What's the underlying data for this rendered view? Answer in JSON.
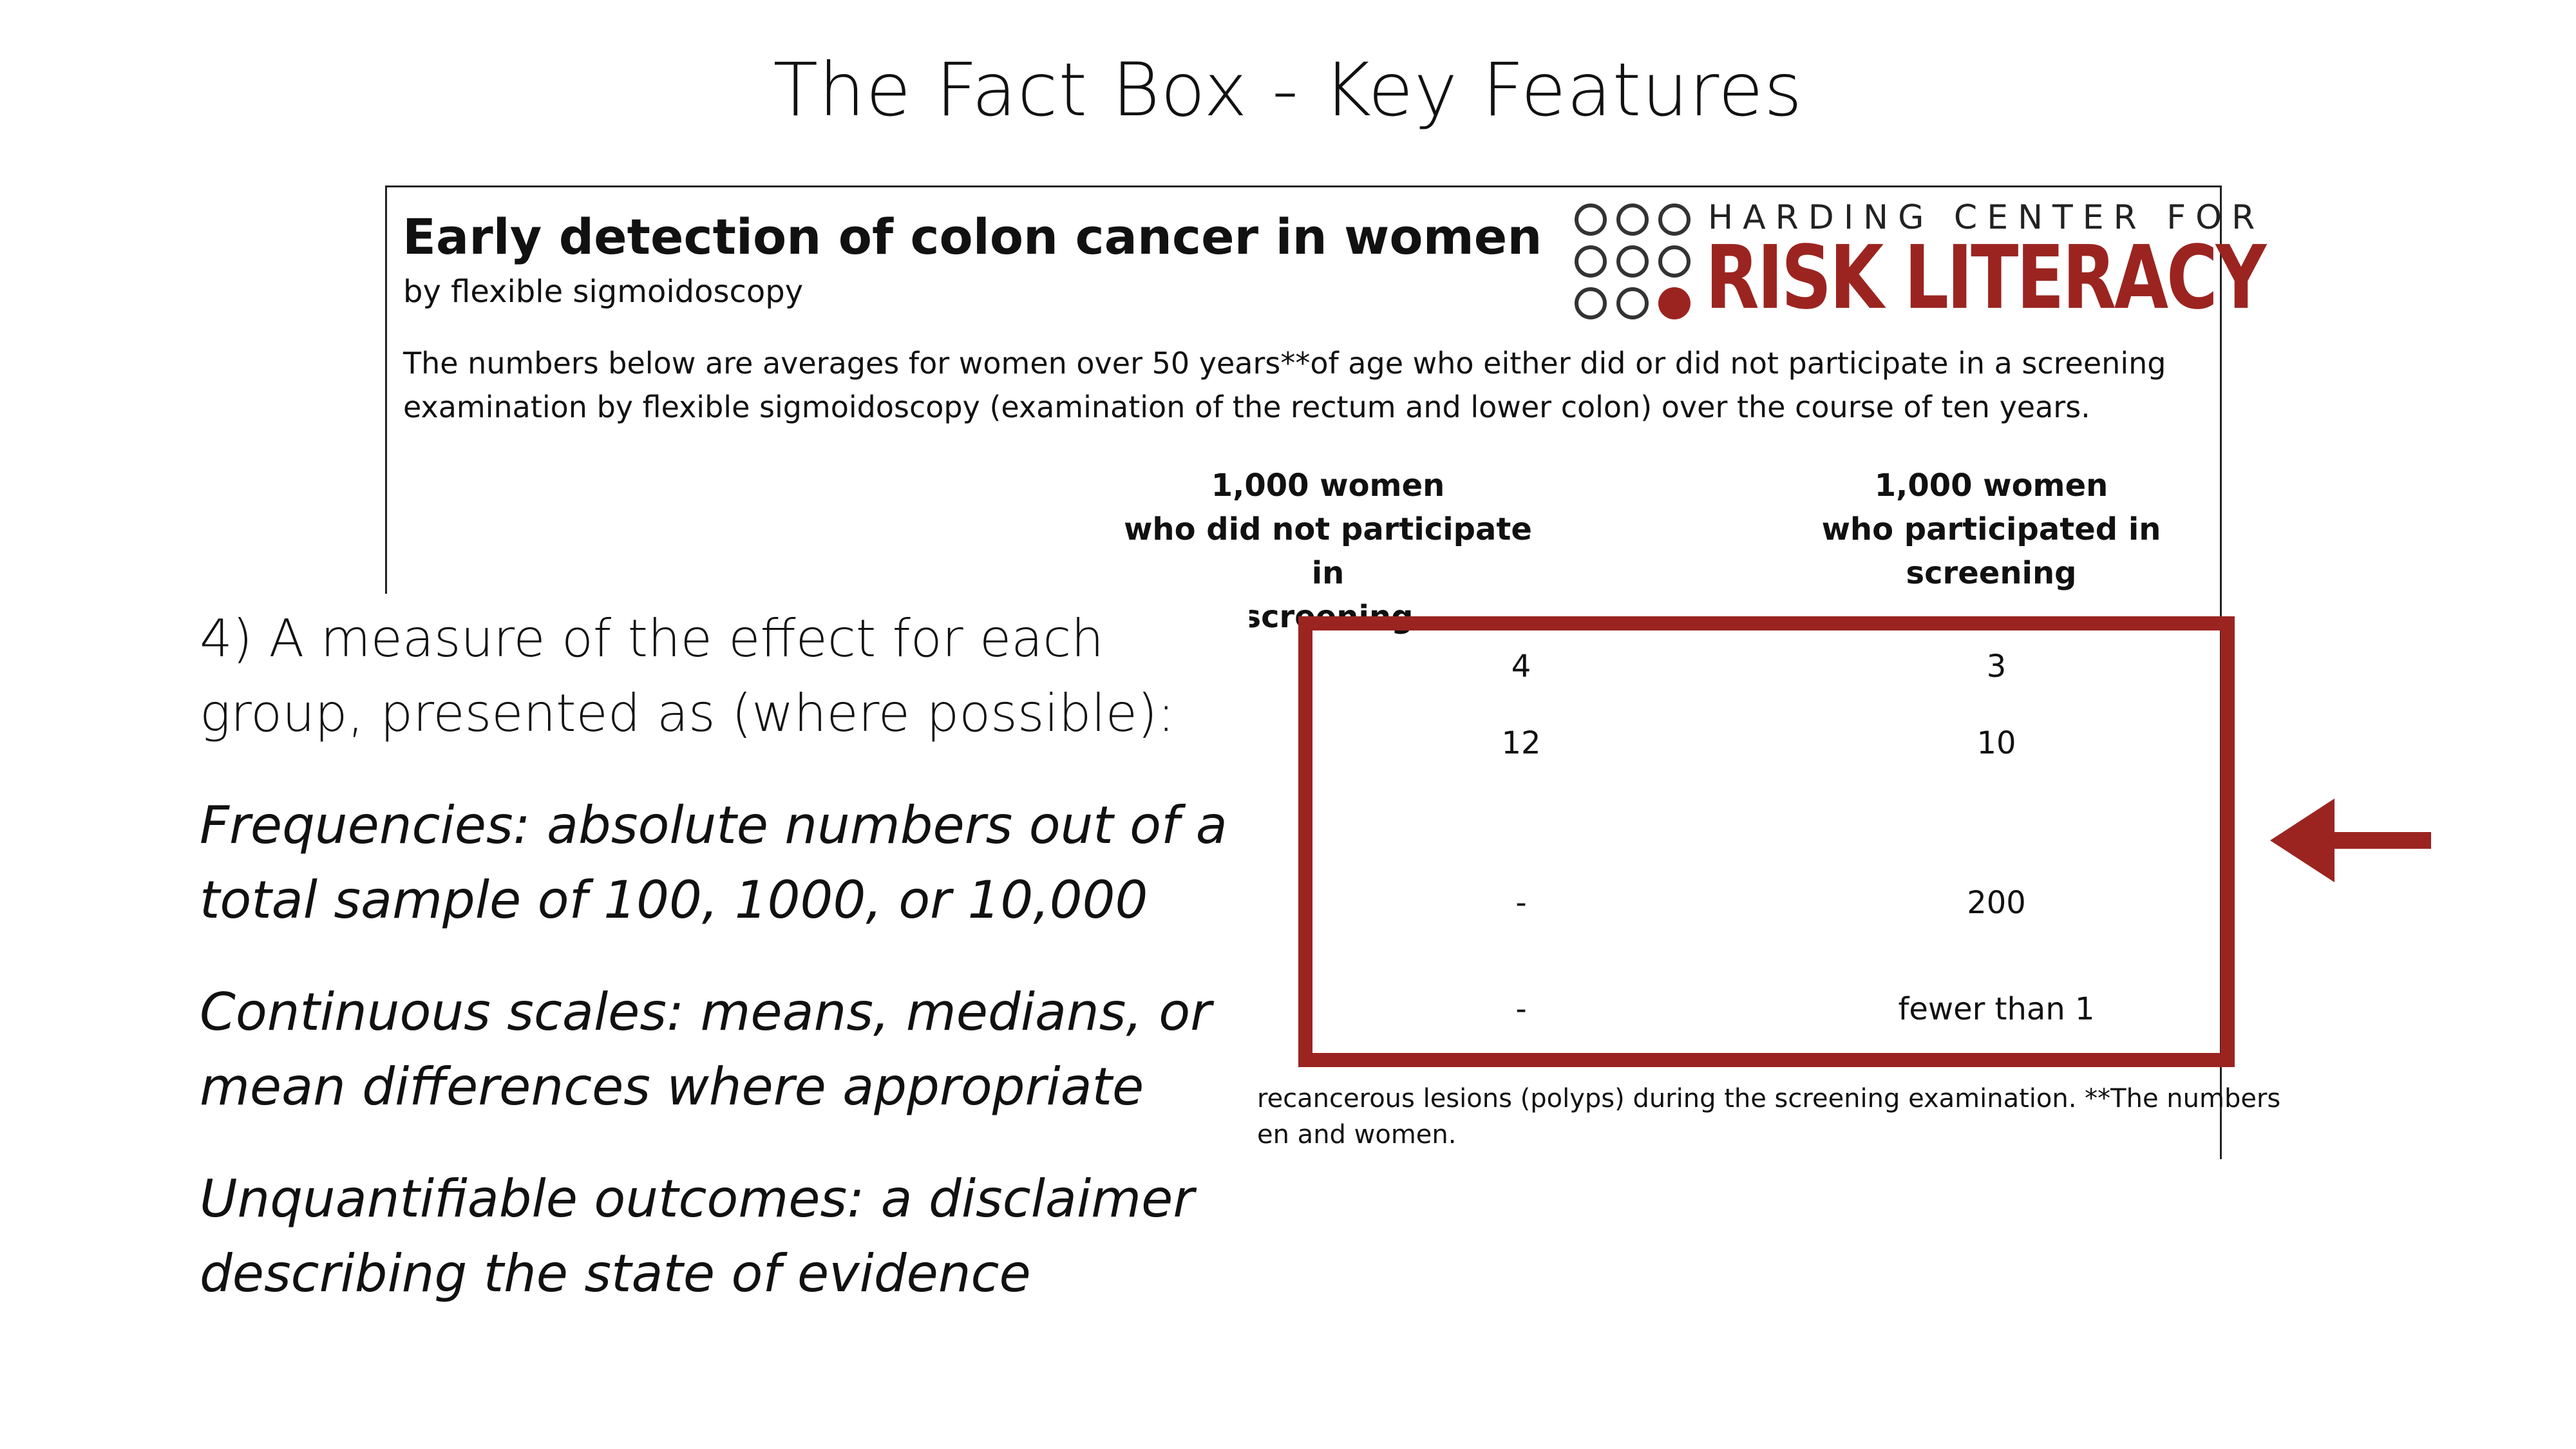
{
  "slide": {
    "title": "The Fact Box - Key Features"
  },
  "factbox": {
    "title": "Early detection of colon cancer in women",
    "subtitle": "by flexible sigmoidoscopy",
    "intro_line1": "The numbers below are averages for women over 50 years**of age  who either did or did not participate in a screening",
    "intro_line2": "examination by flexible sigmoidoscopy (examination of the rectum and lower colon) over the course of ten years.",
    "logo": {
      "top_text": "HARDING CENTER FOR",
      "bottom_text": "RISK LITERACY",
      "color": "#9b2420"
    },
    "columns": [
      {
        "line1": "1,000 women",
        "line2": "who did not participate in",
        "line3": "screening"
      },
      {
        "line1": "1,000 women",
        "line2": "who participated in",
        "line3": "screening"
      }
    ],
    "rows": [
      {
        "not_participated": "4",
        "participated": "3"
      },
      {
        "not_participated": "12",
        "participated": "10"
      },
      {
        "not_participated": "-",
        "participated": "200"
      },
      {
        "not_participated": "-",
        "participated": "fewer than 1"
      }
    ],
    "footnote_line1": "recancerous lesions (polyps) during the screening examination. **The numbers",
    "footnote_line2": "en and women."
  },
  "highlight": {
    "color": "#9b2420"
  },
  "points": {
    "p4": "4) A measure of the effect for each group, presented as (where possible):",
    "frequencies": "Frequencies: absolute numbers out of a total sample of 100, 1000, or 10,000",
    "continuous": "Continuous scales: means, medians, or mean differences where appropriate",
    "unquantifiable": "Unquantifiable outcomes: a disclaimer describing the state of evidence"
  }
}
